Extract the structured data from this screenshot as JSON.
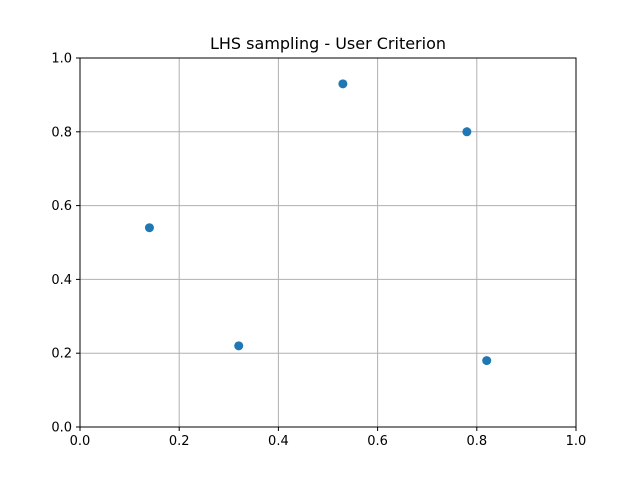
{
  "chart_data": {
    "type": "scatter",
    "title": "LHS sampling - User Criterion",
    "xlabel": "",
    "ylabel": "",
    "xlim": [
      0.0,
      1.0
    ],
    "ylim": [
      0.0,
      1.0
    ],
    "grid": true,
    "x_ticks": [
      "0.0",
      "0.2",
      "0.4",
      "0.6",
      "0.8",
      "1.0"
    ],
    "y_ticks": [
      "0.0",
      "0.2",
      "0.4",
      "0.6",
      "0.8",
      "1.0"
    ],
    "series": [
      {
        "color": "#1f77b4",
        "points": [
          {
            "x": 0.14,
            "y": 0.54
          },
          {
            "x": 0.32,
            "y": 0.22
          },
          {
            "x": 0.53,
            "y": 0.93
          },
          {
            "x": 0.78,
            "y": 0.8
          },
          {
            "x": 0.82,
            "y": 0.18
          }
        ]
      }
    ]
  }
}
